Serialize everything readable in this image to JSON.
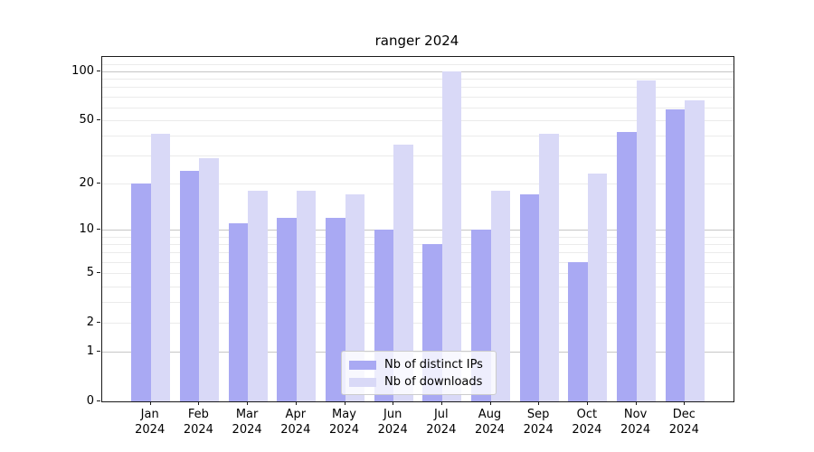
{
  "title": "ranger 2024",
  "chart_data": {
    "type": "bar",
    "title": "ranger 2024",
    "categories": [
      "Jan",
      "Feb",
      "Mar",
      "Apr",
      "May",
      "Jun",
      "Jul",
      "Aug",
      "Sep",
      "Oct",
      "Nov",
      "Dec"
    ],
    "year_label": "2024",
    "series": [
      {
        "name": "Nb of distinct IPs",
        "color": "#a9a9f3",
        "values": [
          20,
          24,
          11,
          12,
          12,
          10,
          8,
          10,
          17,
          6,
          42,
          58
        ]
      },
      {
        "name": "Nb of downloads",
        "color": "#d9d9f7",
        "values": [
          41,
          29,
          18,
          18,
          17,
          35,
          100,
          18,
          41,
          23,
          88,
          66
        ]
      }
    ],
    "yscale": "log1p",
    "yticks": [
      0,
      1,
      2,
      5,
      10,
      20,
      50,
      100
    ],
    "major_gridlines": [
      1,
      10,
      100
    ],
    "minor_gridlines": [
      2,
      3,
      4,
      5,
      6,
      7,
      8,
      9,
      20,
      30,
      40,
      50,
      60,
      70,
      80,
      90,
      110
    ],
    "ylim": [
      0,
      122
    ],
    "xlabel": "",
    "ylabel": "",
    "grid": true,
    "legend_position": "lower center"
  }
}
